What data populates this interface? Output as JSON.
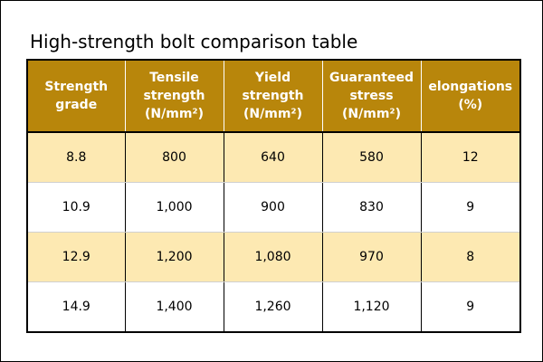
{
  "title": "High-strength bolt comparison table",
  "colors": {
    "header_bg": "#b8860b",
    "header_text": "#ffffff",
    "band_row": "#fde9b2",
    "plain_row": "#ffffff",
    "border": "#000000"
  },
  "table": {
    "headers": [
      [
        "Strength",
        "grade"
      ],
      [
        "Tensile",
        "strength",
        "(N/mm²)"
      ],
      [
        "Yield",
        "strength",
        "(N/mm²)"
      ],
      [
        "Guaranteed",
        "stress",
        "(N/mm²)"
      ],
      [
        "elongations",
        "(%)"
      ]
    ],
    "rows": [
      [
        "8.8",
        "800",
        "640",
        "580",
        "12"
      ],
      [
        "10.9",
        "1,000",
        "900",
        "830",
        "9"
      ],
      [
        "12.9",
        "1,200",
        "1,080",
        "970",
        "8"
      ],
      [
        "14.9",
        "1,400",
        "1,260",
        "1,120",
        "9"
      ]
    ]
  }
}
